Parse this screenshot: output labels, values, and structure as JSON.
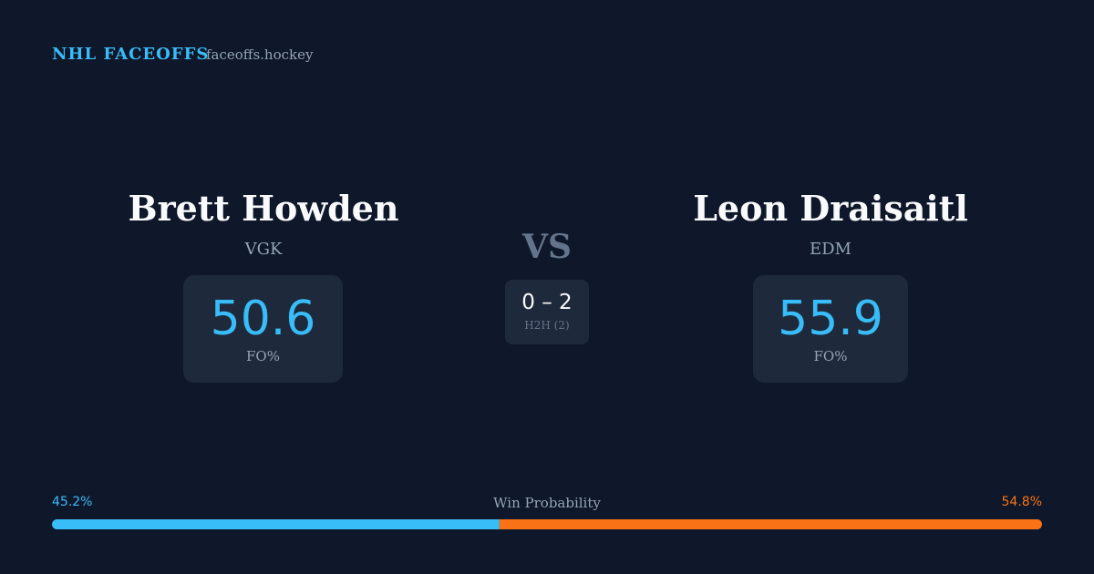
{
  "header": {
    "title": "NHL FACEOFFS",
    "site": "faceoffs.hockey"
  },
  "players": [
    {
      "name": "Brett Howden",
      "team": "VGK",
      "stat": "50.6",
      "stat_label": "FO%"
    },
    {
      "name": "Leon Draisaitl",
      "team": "EDM",
      "stat": "55.9",
      "stat_label": "FO%"
    }
  ],
  "versus": "VS",
  "h2h": {
    "score": "0 – 2",
    "label": "H2H (2)"
  },
  "win_probability": {
    "label": "Win Probability",
    "values": [
      {
        "value": 45.2,
        "label": "45.2%"
      },
      {
        "value": 54.8,
        "label": "54.8%"
      }
    ]
  }
}
